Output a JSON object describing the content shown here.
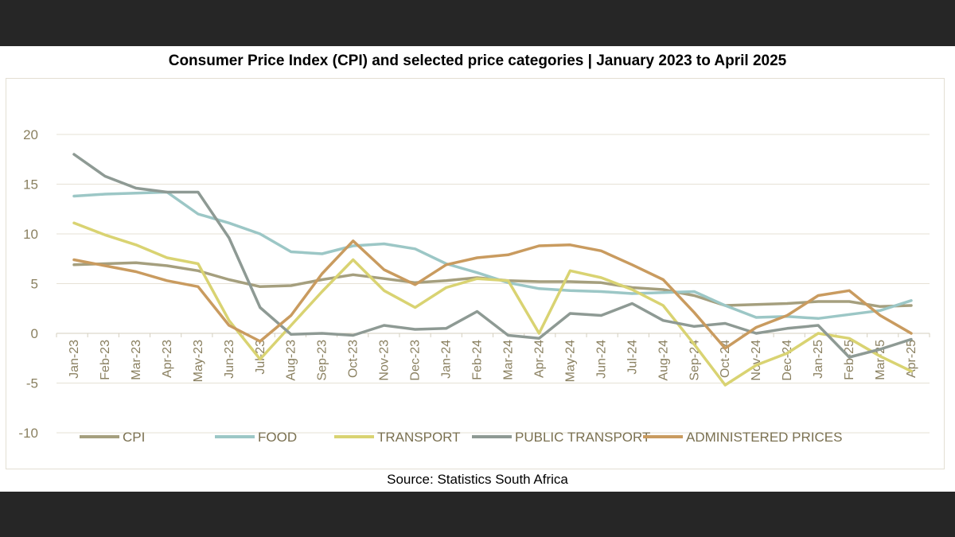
{
  "title": "Consumer Price Index (CPI) and selected price categories | January 2023 to April 2025",
  "source": "Source: Statistics South Africa",
  "chart_data": {
    "type": "line",
    "title": "Consumer Price Index (CPI) and selected price categories | January 2023 to April 2025",
    "xlabel": "",
    "ylabel": "",
    "ylim": [
      -10,
      20
    ],
    "yticks": [
      20,
      15,
      10,
      5,
      0,
      -5,
      -10
    ],
    "grid": true,
    "legend_position": "bottom",
    "categories": [
      "Jan-23",
      "Feb-23",
      "Mar-23",
      "Apr-23",
      "May-23",
      "Jun-23",
      "Jul-23",
      "Aug-23",
      "Sep-23",
      "Oct-23",
      "Nov-23",
      "Dec-23",
      "Jan-24",
      "Feb-24",
      "Mar-24",
      "Apr-24",
      "May-24",
      "Jun-24",
      "Jul-24",
      "Aug-24",
      "Sep-24",
      "Oct-24",
      "Nov-24",
      "Dec-24",
      "Jan-25",
      "Feb-25",
      "Mar-25",
      "Apr-25"
    ],
    "series": [
      {
        "name": "CPI",
        "color": "#a59f7e",
        "values": [
          6.9,
          7.0,
          7.1,
          6.8,
          6.3,
          5.4,
          4.7,
          4.8,
          5.4,
          5.9,
          5.5,
          5.1,
          5.3,
          5.6,
          5.3,
          5.2,
          5.2,
          5.1,
          4.6,
          4.4,
          3.8,
          2.8,
          2.9,
          3.0,
          3.2,
          3.2,
          2.7,
          2.8
        ]
      },
      {
        "name": "FOOD",
        "color": "#9cc7c6",
        "values": [
          13.8,
          14.0,
          14.1,
          14.2,
          12.0,
          11.1,
          10.0,
          8.2,
          8.0,
          8.8,
          9.0,
          8.5,
          7.0,
          6.1,
          5.1,
          4.5,
          4.3,
          4.2,
          4.0,
          4.1,
          4.2,
          2.8,
          1.6,
          1.7,
          1.5,
          1.9,
          2.3,
          3.3
        ]
      },
      {
        "name": "TRANSPORT",
        "color": "#d9d372",
        "values": [
          11.1,
          9.9,
          8.9,
          7.6,
          7.0,
          1.3,
          -2.6,
          0.8,
          4.2,
          7.4,
          4.3,
          2.6,
          4.6,
          5.5,
          5.3,
          0.0,
          6.3,
          5.6,
          4.4,
          2.8,
          -1.1,
          -5.2,
          -3.2,
          -2.0,
          0.0,
          -0.5,
          -2.3,
          -3.8
        ]
      },
      {
        "name": "PUBLIC TRANSPORT",
        "color": "#8e9a94",
        "values": [
          18.0,
          15.8,
          14.6,
          14.2,
          14.2,
          9.6,
          2.6,
          -0.1,
          0.0,
          -0.2,
          0.8,
          0.4,
          0.5,
          2.2,
          -0.2,
          -0.5,
          2.0,
          1.8,
          3.0,
          1.3,
          0.7,
          1.0,
          0.0,
          0.5,
          0.8,
          -2.4,
          -1.6,
          -0.6
        ]
      },
      {
        "name": "ADMINISTERED PRICES",
        "color": "#c99b5f",
        "values": [
          7.4,
          6.8,
          6.2,
          5.3,
          4.7,
          0.8,
          -0.8,
          1.8,
          6.0,
          9.3,
          6.4,
          4.9,
          6.9,
          7.6,
          7.9,
          8.8,
          8.9,
          8.3,
          6.9,
          5.4,
          2.1,
          -1.5,
          0.6,
          1.8,
          3.8,
          4.3,
          1.8,
          0.0
        ]
      }
    ]
  }
}
